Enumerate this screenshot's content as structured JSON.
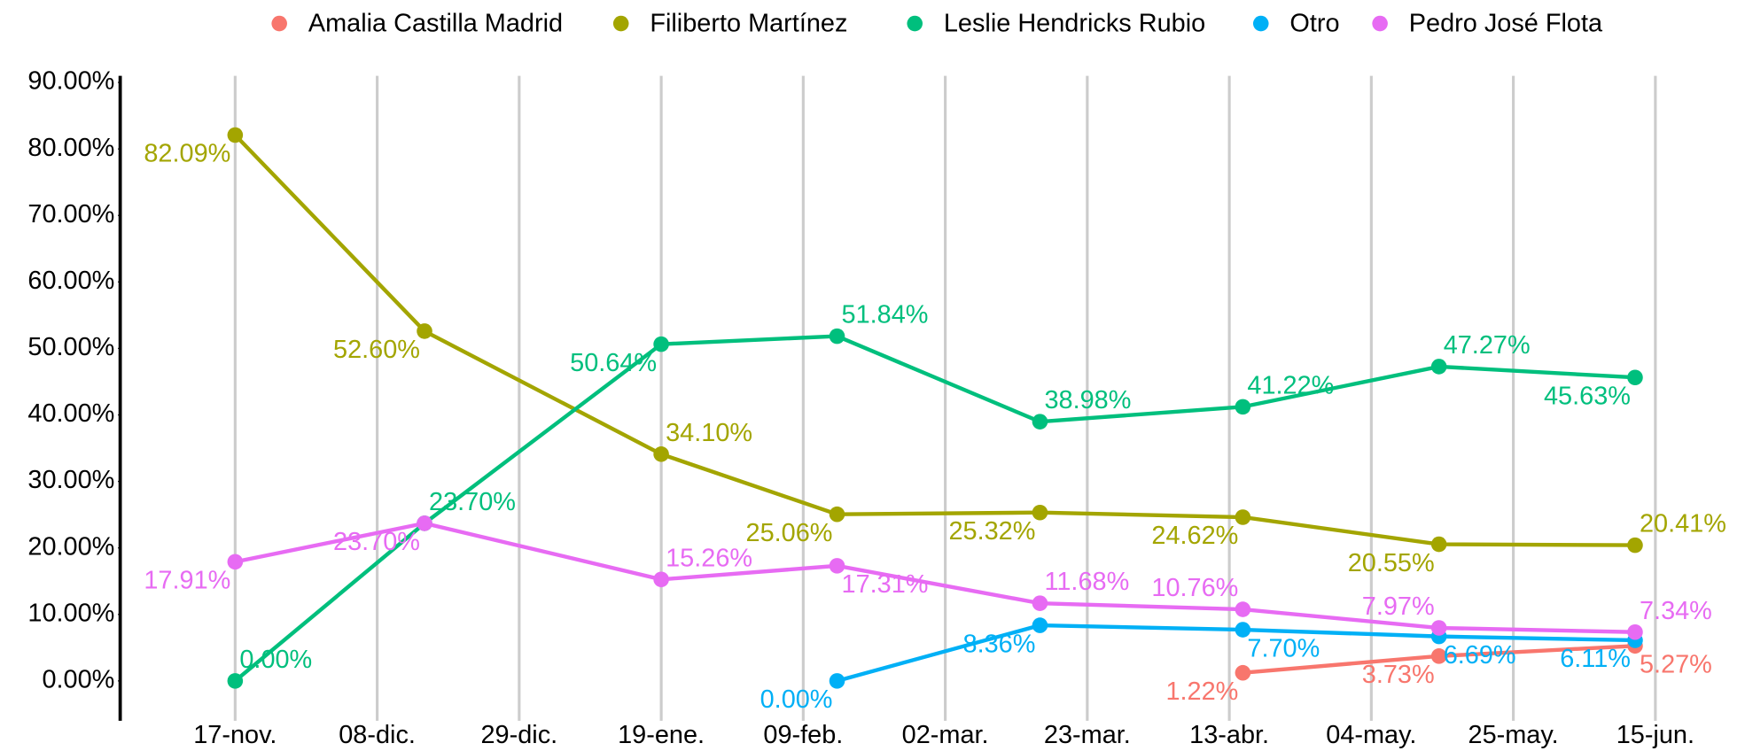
{
  "chart_data": {
    "type": "line",
    "x": [
      0,
      28,
      63,
      89,
      119,
      149,
      178,
      207
    ],
    "xlim": [
      -17,
      217
    ],
    "xticks": [
      {
        "value": 0,
        "label": "17-nov."
      },
      {
        "value": 21,
        "label": "08-dic."
      },
      {
        "value": 42,
        "label": "29-dic."
      },
      {
        "value": 63,
        "label": "19-ene."
      },
      {
        "value": 84,
        "label": "09-feb."
      },
      {
        "value": 105,
        "label": "02-mar."
      },
      {
        "value": 126,
        "label": "23-mar."
      },
      {
        "value": 147,
        "label": "13-abr."
      },
      {
        "value": 168,
        "label": "04-may."
      },
      {
        "value": 189,
        "label": "25-may."
      },
      {
        "value": 210,
        "label": "15-jun."
      }
    ],
    "ylim": [
      -6,
      91
    ],
    "yticks": [
      {
        "value": 0,
        "label": "0.00%"
      },
      {
        "value": 10,
        "label": "10.00%"
      },
      {
        "value": 20,
        "label": "20.00%"
      },
      {
        "value": 30,
        "label": "30.00%"
      },
      {
        "value": 40,
        "label": "40.00%"
      },
      {
        "value": 50,
        "label": "50.00%"
      },
      {
        "value": 60,
        "label": "60.00%"
      },
      {
        "value": 70,
        "label": "70.00%"
      },
      {
        "value": 80,
        "label": "80.00%"
      },
      {
        "value": 90,
        "label": "90.00%"
      }
    ],
    "grid": "x",
    "legend": "top",
    "series": [
      {
        "name": "Amalia Castilla Madrid",
        "color": "#f8766d",
        "values": [
          null,
          null,
          null,
          null,
          null,
          1.22,
          3.73,
          5.27
        ],
        "value_labels": [
          null,
          null,
          null,
          null,
          null,
          "1.22%",
          "3.73%",
          "5.27%"
        ]
      },
      {
        "name": "Filiberto Martínez",
        "color": "#a3a500",
        "values": [
          82.09,
          52.6,
          34.1,
          25.06,
          25.32,
          24.62,
          20.55,
          20.41
        ],
        "value_labels": [
          "82.09%",
          "52.60%",
          "34.10%",
          "25.06%",
          "25.32%",
          "24.62%",
          "20.55%",
          "20.41%"
        ]
      },
      {
        "name": "Leslie Hendricks Rubio",
        "color": "#00bf7d",
        "values": [
          0.0,
          23.7,
          50.64,
          51.84,
          38.98,
          41.22,
          47.27,
          45.63
        ],
        "value_labels": [
          "0.00%",
          "23.70%",
          "50.64%",
          "51.84%",
          "38.98%",
          "41.22%",
          "47.27%",
          "45.63%"
        ]
      },
      {
        "name": "Otro",
        "color": "#00b0f6",
        "values": [
          null,
          null,
          null,
          0.0,
          8.36,
          7.7,
          6.69,
          6.11
        ],
        "value_labels": [
          null,
          null,
          null,
          "0.00%",
          "8.36%",
          "7.70%",
          "6.69%",
          "6.11%"
        ]
      },
      {
        "name": "Pedro José Flota",
        "color": "#e76bf3",
        "values": [
          17.91,
          23.7,
          15.26,
          17.31,
          11.68,
          10.76,
          7.97,
          7.34
        ],
        "value_labels": [
          "17.91%",
          "23.70%",
          "15.26%",
          "17.31%",
          "11.68%",
          "10.76%",
          "7.97%",
          "7.34%"
        ]
      }
    ]
  }
}
